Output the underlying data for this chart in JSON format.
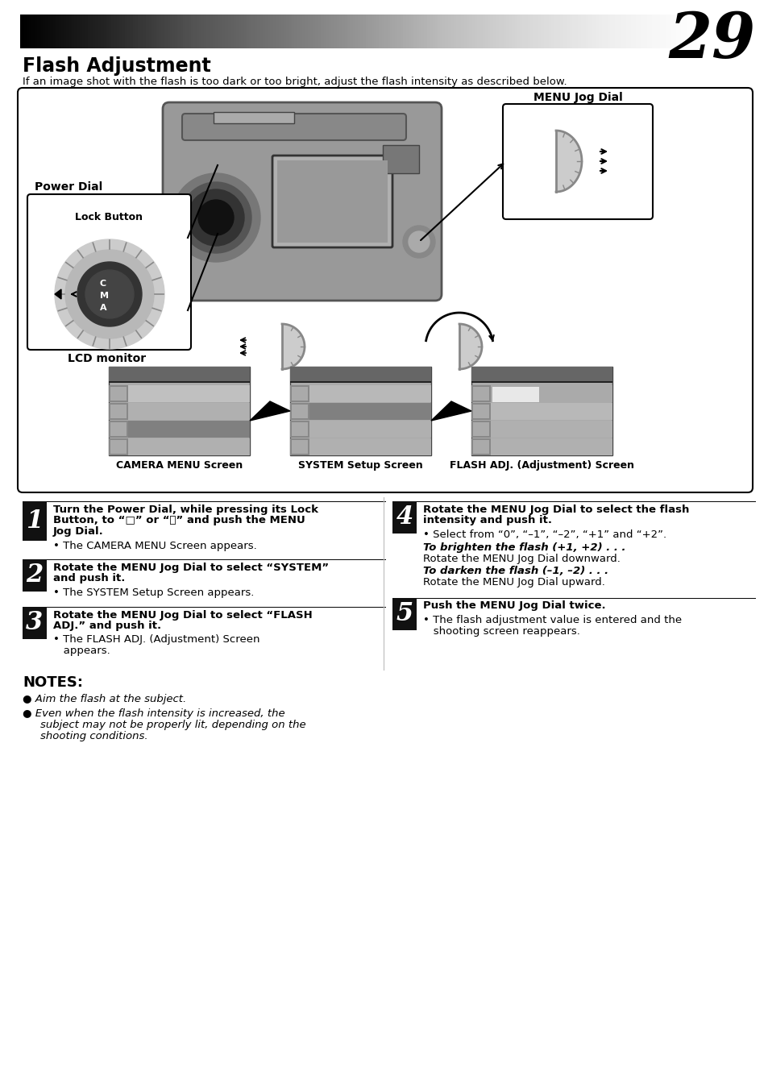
{
  "page_number": "29",
  "title": "Flash Adjustment",
  "subtitle": "If an image shot with the flash is too dark or too bright, adjust the flash intensity as described below.",
  "bg_color": "#ffffff",
  "steps_left": [
    {
      "num": "1",
      "bold_lines": [
        "Turn the Power Dial, while pressing its Lock",
        "Button, to \"□\" or \"⌛\" and push the MENU",
        "Jog Dial."
      ],
      "bullet": "The CAMERA MENU Screen appears."
    },
    {
      "num": "2",
      "bold_lines": [
        "Rotate the MENU Jog Dial to select “SYSTEM”",
        "and push it."
      ],
      "bullet": "The SYSTEM Setup Screen appears."
    },
    {
      "num": "3",
      "bold_lines": [
        "Rotate the MENU Jog Dial to select “FLASH",
        "ADJ.” and push it."
      ],
      "bullet_lines": [
        "The FLASH ADJ. (Adjustment) Screen",
        "appears."
      ]
    }
  ],
  "steps_right": [
    {
      "num": "4",
      "bold_lines": [
        "Rotate the MENU Jog Dial to select the flash",
        "intensity and push it."
      ],
      "bullet": "Select from “0”, “–1”, “–2”, “+1” and “+2”.",
      "extra": [
        {
          "italic_bold": "To brighten the flash (+1, +2) . . .",
          "normal": "Rotate the MENU Jog Dial downward."
        },
        {
          "italic_bold": "To darken the flash (–1, –2) . . .",
          "normal": "Rotate the MENU Jog Dial upward."
        }
      ]
    },
    {
      "num": "5",
      "bold_lines": [
        "Push the MENU Jog Dial twice."
      ],
      "bullet_lines": [
        "The flash adjustment value is entered and the",
        "shooting screen reappears."
      ]
    }
  ],
  "notes_title": "NOTES:",
  "notes": [
    [
      "Aim the flash at the subject."
    ],
    [
      "Even when the flash intensity is increased, the",
      "subject may not be properly lit, depending on the",
      "shooting conditions."
    ]
  ],
  "diagram_labels": {
    "power_dial": "Power Dial",
    "lock_button": "Lock Button",
    "menu_jog_dial": "MENU Jog Dial",
    "lcd_monitor": "LCD monitor",
    "cam_screen": "CAMERA MENU Screen",
    "sys_screen": "SYSTEM Setup Screen",
    "flash_screen": "FLASH ADJ. (Adjustment) Screen"
  }
}
